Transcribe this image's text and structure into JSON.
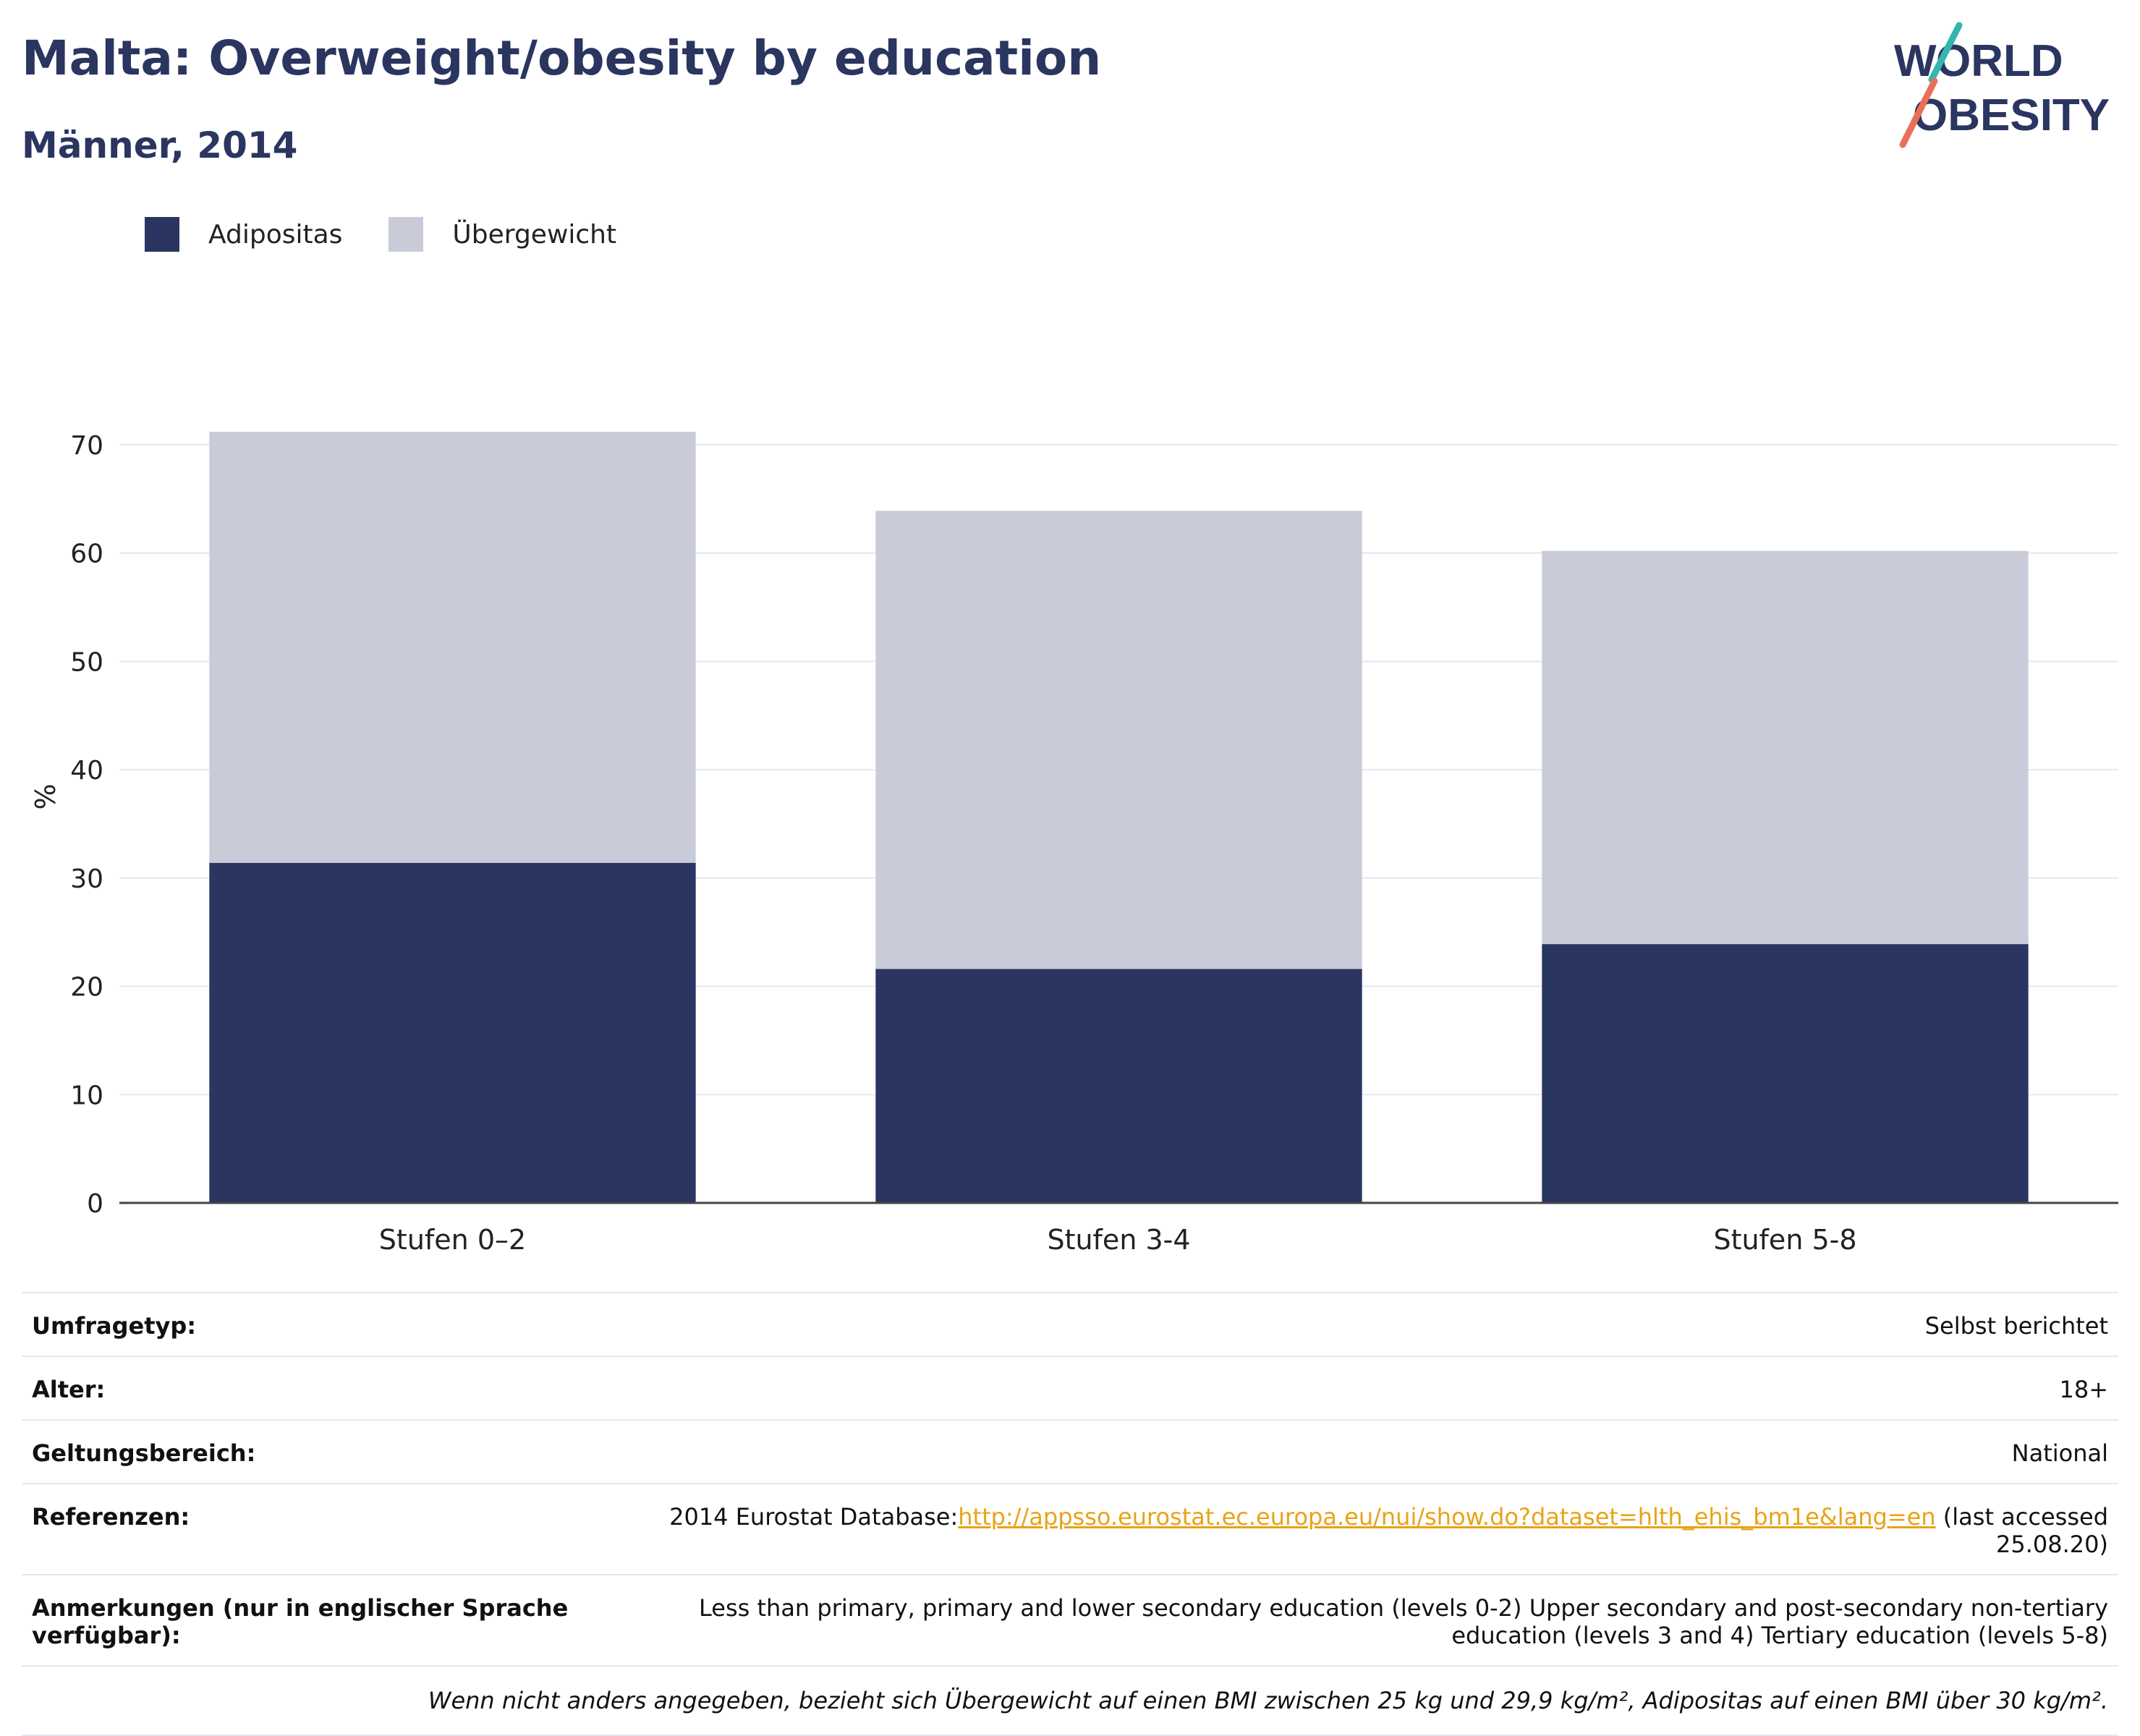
{
  "header": {
    "title": "Malta: Overweight/obesity by education",
    "subtitle": "Männer, 2014"
  },
  "logo": {
    "line1": "WORLD",
    "line2": "OBESITY"
  },
  "colors": {
    "obesity": "#2a3561",
    "overweight": "#c9ccd8",
    "accent_teal": "#33b5b0",
    "accent_red": "#e8705a",
    "text": "#2a3560"
  },
  "chart_data": {
    "type": "bar",
    "stacked": true,
    "categories": [
      "Stufen 0–2",
      "Stufen 3-4",
      "Stufen 5-8"
    ],
    "series": [
      {
        "name": "Adipositas",
        "values": [
          31.4,
          21.6,
          23.9
        ]
      },
      {
        "name": "Übergewicht",
        "values": [
          39.8,
          42.3,
          36.3
        ]
      }
    ],
    "ylabel": "%",
    "ylim": [
      0,
      75
    ],
    "yticks": [
      0,
      10,
      20,
      30,
      40,
      50,
      60,
      70
    ],
    "grid": true,
    "legend_position": "top-left"
  },
  "meta": {
    "survey_type_label": "Umfragetyp:",
    "survey_type_value": "Selbst berichtet",
    "age_label": "Alter:",
    "age_value": "18+",
    "scope_label": "Geltungsbereich:",
    "scope_value": "National",
    "references_label": "Referenzen:",
    "references_prefix": "2014 Eurostat Database:",
    "references_link": "http://appsso.eurostat.ec.europa.eu/nui/show.do?dataset=hlth_ehis_bm1e&lang=en",
    "references_suffix": " (last accessed 25.08.20)",
    "notes_label": "Anmerkungen (nur in englischer Sprache verfügbar):",
    "notes_value": "Less than primary, primary and lower secondary education (levels 0-2) Upper secondary and post-secondary non-tertiary education (levels 3 and 4) Tertiary education (levels 5-8)",
    "footnote": "Wenn nicht anders angegeben, bezieht sich Übergewicht auf einen BMI zwischen 25 kg und 29,9 kg/m², Adipositas auf einen BMI über 30 kg/m²."
  }
}
